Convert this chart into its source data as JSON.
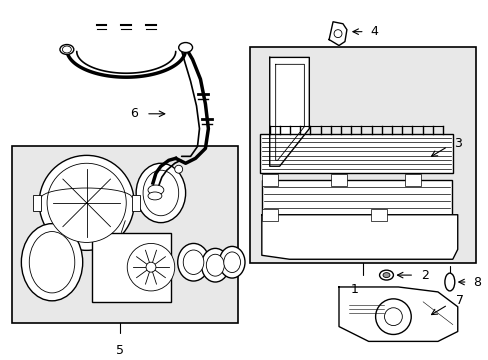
{
  "bg_color": "#ffffff",
  "part_color": "#000000",
  "box_fill": "#e8e8e8",
  "figsize": [
    4.89,
    3.6
  ],
  "dpi": 100,
  "lw_main": 1.0,
  "lw_thin": 0.6
}
